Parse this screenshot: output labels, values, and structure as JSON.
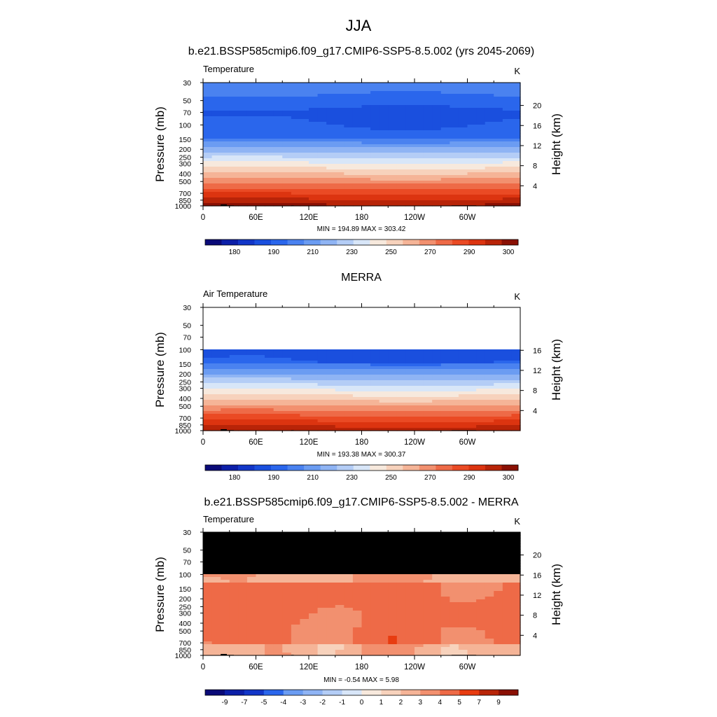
{
  "figure_title": "JJA",
  "chart_data": [
    {
      "type": "heatmap",
      "title": "b.e21.BSSP585cmip6.f09_g17.CMIP6-SSP5-8.5.002 (yrs 2045-2069)",
      "left_label": "Temperature",
      "units": "K",
      "ylabel": "Pressure (mb)",
      "ylabel_right": "Height (km)",
      "x_ticks": [
        "0",
        "60E",
        "120E",
        "180",
        "120W",
        "60W"
      ],
      "x_tick_values": [
        0,
        60,
        120,
        180,
        240,
        300
      ],
      "xlim": [
        0,
        360
      ],
      "y_ticks": [
        "30",
        "50",
        "70",
        "100",
        "150",
        "200",
        "250",
        "300",
        "400",
        "500",
        "700",
        "850",
        "1000"
      ],
      "y_tick_values": [
        30,
        50,
        70,
        100,
        150,
        200,
        250,
        300,
        400,
        500,
        700,
        850,
        1000
      ],
      "ylim": [
        30,
        1000
      ],
      "height_ticks": [
        "20",
        "16",
        "12",
        "8",
        "4"
      ],
      "height_tick_values": [
        20,
        16,
        12,
        8,
        4
      ],
      "stats": "MIN = 194.89  MAX = 303.42",
      "colorbar_labels": [
        "180",
        "190",
        "210",
        "230",
        "250",
        "270",
        "290",
        "300"
      ],
      "missing_above_mb": null,
      "field": "temperature",
      "field_min": 194.89,
      "field_max": 303.42
    },
    {
      "type": "heatmap",
      "title": "MERRA",
      "left_label": "Air Temperature",
      "units": "K",
      "ylabel": "Pressure (mb)",
      "ylabel_right": "Height (km)",
      "x_ticks": [
        "0",
        "60E",
        "120E",
        "180",
        "120W",
        "60W"
      ],
      "x_tick_values": [
        0,
        60,
        120,
        180,
        240,
        300
      ],
      "xlim": [
        0,
        360
      ],
      "y_ticks": [
        "30",
        "50",
        "70",
        "100",
        "150",
        "200",
        "250",
        "300",
        "400",
        "500",
        "700",
        "850",
        "1000"
      ],
      "y_tick_values": [
        30,
        50,
        70,
        100,
        150,
        200,
        250,
        300,
        400,
        500,
        700,
        850,
        1000
      ],
      "ylim": [
        30,
        1000
      ],
      "height_ticks": [
        "16",
        "12",
        "8",
        "4"
      ],
      "height_tick_values": [
        16,
        12,
        8,
        4
      ],
      "stats": "MIN = 193.38  MAX = 300.37",
      "colorbar_labels": [
        "180",
        "190",
        "210",
        "230",
        "250",
        "270",
        "290",
        "300"
      ],
      "missing_above_mb": 100,
      "missing_color": "#ffffff",
      "field": "temperature",
      "field_min": 193.38,
      "field_max": 300.37
    },
    {
      "type": "heatmap",
      "title": "b.e21.BSSP585cmip6.f09_g17.CMIP6-SSP5-8.5.002 - MERRA",
      "left_label": "Temperature",
      "units": "K",
      "ylabel": "Pressure (mb)",
      "ylabel_right": "Height (km)",
      "x_ticks": [
        "0",
        "60E",
        "120E",
        "180",
        "120W",
        "60W"
      ],
      "x_tick_values": [
        0,
        60,
        120,
        180,
        240,
        300
      ],
      "xlim": [
        0,
        360
      ],
      "y_ticks": [
        "30",
        "50",
        "70",
        "100",
        "150",
        "200",
        "250",
        "300",
        "400",
        "500",
        "700",
        "850",
        "1000"
      ],
      "y_tick_values": [
        30,
        50,
        70,
        100,
        150,
        200,
        250,
        300,
        400,
        500,
        700,
        850,
        1000
      ],
      "ylim": [
        30,
        1000
      ],
      "height_ticks": [
        "20",
        "16",
        "12",
        "8",
        "4"
      ],
      "height_tick_values": [
        20,
        16,
        12,
        8,
        4
      ],
      "stats": "MIN = -0.54  MAX =  5.98",
      "colorbar_labels": [
        "-9",
        "-7",
        "-5",
        "-4",
        "-3",
        "-2",
        "-1",
        "0",
        "1",
        "2",
        "3",
        "4",
        "5",
        "7",
        "9"
      ],
      "missing_above_mb": 100,
      "missing_color": "#000000",
      "field": "difference",
      "field_min": -0.54,
      "field_max": 5.98
    }
  ],
  "colors": {
    "temp_scale": [
      "#0a0a78",
      "#0c1fa8",
      "#1236c8",
      "#1a4fde",
      "#2a66ec",
      "#4a82f0",
      "#6b9cf2",
      "#8fb4f4",
      "#b4cdf6",
      "#d8e6f8",
      "#f7e9dd",
      "#f7d2bc",
      "#f5b497",
      "#f2906f",
      "#ee6a47",
      "#ea4a24",
      "#dc3410",
      "#b82408",
      "#8a1004"
    ],
    "diff_scale": [
      "#0a0a78",
      "#0c1fa8",
      "#1236c8",
      "#2a66ec",
      "#6b9cf2",
      "#8fb4f4",
      "#b4cdf6",
      "#d8e6f8",
      "#f7e9dd",
      "#f7d2bc",
      "#f5b497",
      "#f2906f",
      "#ee6a47",
      "#e83c10",
      "#b82408",
      "#8a1004"
    ],
    "terrain": "#000000"
  }
}
